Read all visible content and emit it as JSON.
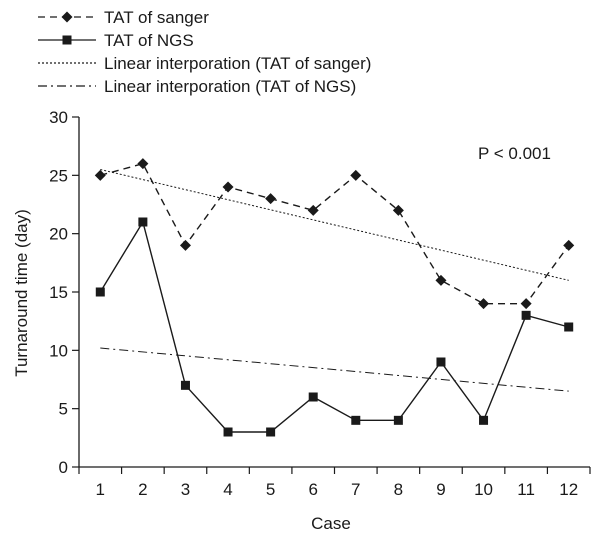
{
  "chart_data": {
    "type": "line",
    "title": "",
    "xlabel": "Case",
    "ylabel": "Turnaround time (day)",
    "annotation": "P < 0.001",
    "categories": [
      "1",
      "2",
      "3",
      "4",
      "5",
      "6",
      "7",
      "8",
      "9",
      "10",
      "11",
      "12"
    ],
    "xlim": [
      0.5,
      12.5
    ],
    "ylim": [
      0,
      30
    ],
    "yticks": [
      0,
      5,
      10,
      15,
      20,
      25,
      30
    ],
    "grid": false,
    "legend_position": "top-left",
    "series": [
      {
        "name": "TAT of sanger",
        "style": "dashed",
        "marker": "diamond",
        "values": [
          25,
          26,
          19,
          24,
          23,
          22,
          25,
          22,
          16,
          14,
          14,
          19
        ]
      },
      {
        "name": "TAT of NGS",
        "style": "solid",
        "marker": "square",
        "values": [
          15,
          21,
          7,
          3,
          3,
          6,
          4,
          4,
          9,
          4,
          13,
          12
        ]
      }
    ],
    "trendlines": [
      {
        "name": "Linear interporation (TAT of sanger)",
        "style": "dotted",
        "start": [
          1,
          25.5
        ],
        "end": [
          12,
          16
        ]
      },
      {
        "name": "Linear interporation (TAT of NGS)",
        "style": "dashdot",
        "start": [
          1,
          10.2
        ],
        "end": [
          12,
          6.5
        ]
      }
    ]
  }
}
